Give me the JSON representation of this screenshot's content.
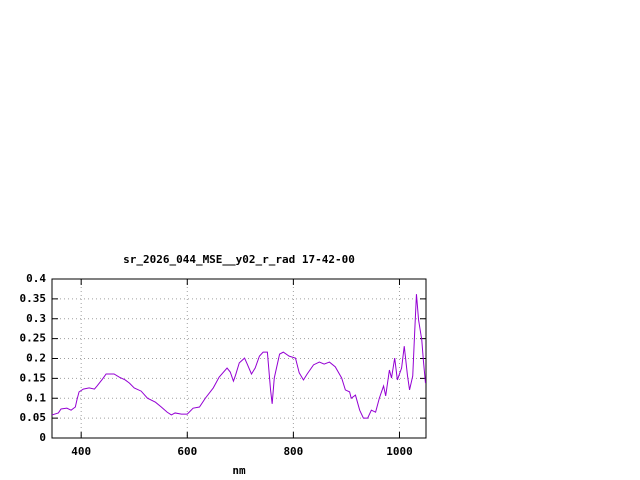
{
  "chart_data": {
    "type": "line",
    "title": "sr_2026_044_MSE__y02_r_rad 17-42-00",
    "x_label": "nm",
    "x": [
      345,
      357,
      362,
      373,
      381,
      389,
      392,
      396,
      404,
      415,
      425,
      430,
      440,
      447,
      462,
      472,
      483,
      491,
      500,
      513,
      525,
      540,
      551,
      562,
      570,
      577,
      589,
      600,
      611,
      623,
      634,
      649,
      660,
      675,
      681,
      687,
      691,
      698,
      708,
      713,
      721,
      728,
      736,
      743,
      751,
      757,
      760,
      764,
      774,
      781,
      792,
      804,
      811,
      819,
      826,
      838,
      849,
      858,
      868,
      879,
      891,
      898,
      906,
      909,
      917,
      925,
      932,
      940,
      947,
      955,
      962,
      970,
      974,
      981,
      985,
      991,
      996,
      1004,
      1009,
      1015,
      1019,
      1025,
      1028,
      1032,
      1036,
      1042,
      1045,
      1049
    ],
    "series": [
      {
        "name": "sr_2026_044_MSE__y02_r_rad",
        "color": "#9400d3",
        "values": [
          0.058,
          0.063,
          0.073,
          0.075,
          0.07,
          0.078,
          0.096,
          0.116,
          0.123,
          0.126,
          0.123,
          0.131,
          0.148,
          0.161,
          0.161,
          0.153,
          0.146,
          0.138,
          0.126,
          0.118,
          0.1,
          0.09,
          0.078,
          0.065,
          0.058,
          0.063,
          0.06,
          0.06,
          0.075,
          0.078,
          0.1,
          0.126,
          0.153,
          0.176,
          0.166,
          0.143,
          0.158,
          0.189,
          0.201,
          0.186,
          0.161,
          0.176,
          0.206,
          0.216,
          0.216,
          0.121,
          0.086,
          0.151,
          0.211,
          0.216,
          0.206,
          0.201,
          0.164,
          0.146,
          0.161,
          0.184,
          0.191,
          0.186,
          0.191,
          0.179,
          0.151,
          0.121,
          0.116,
          0.1,
          0.108,
          0.07,
          0.05,
          0.05,
          0.07,
          0.065,
          0.1,
          0.131,
          0.106,
          0.171,
          0.151,
          0.201,
          0.146,
          0.176,
          0.231,
          0.158,
          0.121,
          0.156,
          0.247,
          0.362,
          0.297,
          0.247,
          0.196,
          0.138
        ]
      }
    ],
    "xlim": [
      345,
      1050
    ],
    "xticks": [
      400,
      600,
      800,
      1000
    ],
    "ylim": [
      0,
      0.4
    ],
    "yticks": [
      0,
      0.05,
      0.1,
      0.15,
      0.2,
      0.25,
      0.3,
      0.35,
      0.4
    ],
    "grid": true
  }
}
